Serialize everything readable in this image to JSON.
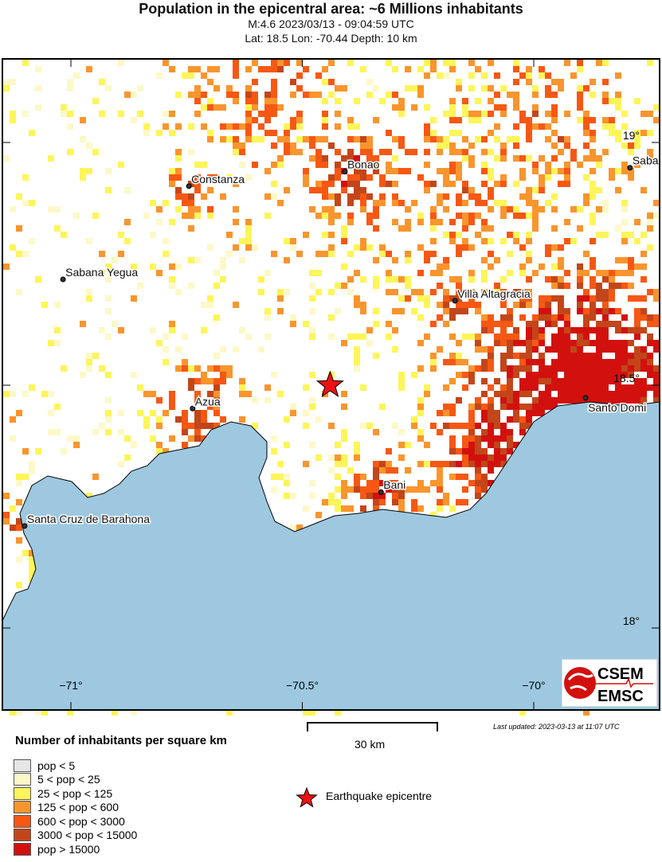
{
  "title": "Population in the epicentral area: ~6 Millions inhabitants",
  "subtitle1": "M:4.6 2023/03/13 - 09:04:59 UTC",
  "subtitle2": "Lat: 18.5 Lon: -70.44 Depth: 10 km",
  "map": {
    "lon_range": [
      -71.148,
      -69.728
    ],
    "lat_range": [
      17.831,
      19.172
    ],
    "lon_ticks": [
      {
        "v": -71,
        "label": "−71°"
      },
      {
        "v": -70.5,
        "label": "−70.5°"
      },
      {
        "v": -70,
        "label": "−70°"
      }
    ],
    "lat_ticks": [
      {
        "v": 19,
        "label": "19°"
      },
      {
        "v": 18.5,
        "label": "18.5°"
      },
      {
        "v": 18,
        "label": "18°"
      }
    ],
    "sea_color": "#9dc8e0",
    "epicentre": {
      "lat": 18.5,
      "lon": -70.44,
      "color": "#ee1111"
    },
    "cities": [
      {
        "name": "Constanza",
        "lat": 18.91,
        "lon": -70.745
      },
      {
        "name": "Bonao",
        "lat": 18.94,
        "lon": -70.408
      },
      {
        "name": "Saba",
        "lat": 18.948,
        "lon": -69.792
      },
      {
        "name": "Sabana Yegua",
        "lat": 18.718,
        "lon": -71.017
      },
      {
        "name": "Villa Altagracia",
        "lat": 18.674,
        "lon": -70.17
      },
      {
        "name": "Azua",
        "lat": 18.452,
        "lon": -70.737
      },
      {
        "name": "Santo Domi",
        "lat": 18.474,
        "lon": -69.888
      },
      {
        "name": "Bani",
        "lat": 18.28,
        "lon": -70.33
      },
      {
        "name": "Santa Cruz de Barahona",
        "lat": 18.21,
        "lon": -71.1
      }
    ]
  },
  "legend": {
    "title": "Number of inhabitants per square km",
    "items": [
      {
        "label": "pop < 5",
        "color": "#e6e6e6"
      },
      {
        "label": "5 < pop < 25",
        "color": "#fdf8c8"
      },
      {
        "label": "25 < pop < 125",
        "color": "#fdf55a"
      },
      {
        "label": "125 < pop < 600",
        "color": "#f9952e"
      },
      {
        "label": "600 < pop < 3000",
        "color": "#f65814"
      },
      {
        "label": "3000 < pop < 15000",
        "color": "#c2461a"
      },
      {
        "label": "pop > 15000",
        "color": "#d2110f"
      }
    ],
    "epicentre_label": "Earthquake epicentre"
  },
  "scale": {
    "label": "30 km"
  },
  "last_updated": "Last updated: 2023-03-13 at 11:07 UTC",
  "logo": {
    "top": "CSEM",
    "bottom": "EMSC"
  }
}
